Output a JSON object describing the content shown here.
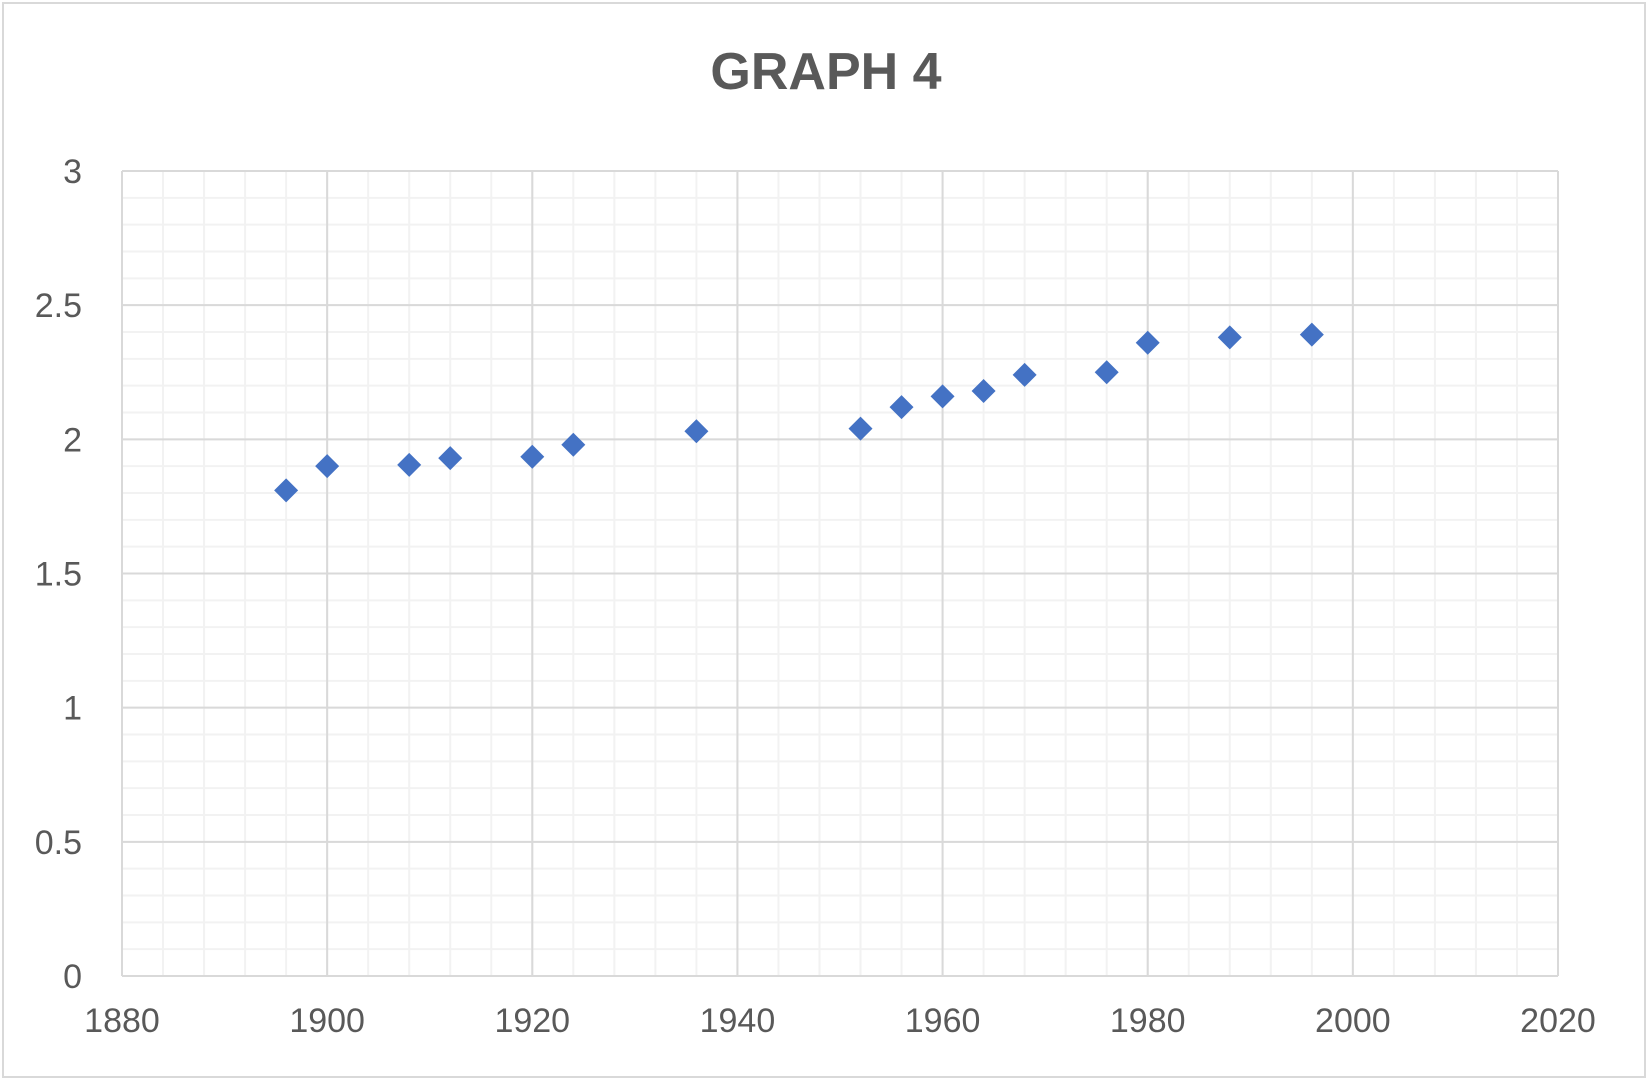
{
  "chart_data": {
    "type": "scatter",
    "title": "GRAPH 4",
    "xlabel": "",
    "ylabel": "",
    "xlim": [
      1880,
      2020
    ],
    "ylim": [
      0,
      3
    ],
    "x_major_step": 20,
    "y_major_step": 0.5,
    "x_minor_step": 4,
    "y_minor_step": 0.1,
    "x_ticks": [
      "1880",
      "1900",
      "1920",
      "1940",
      "1960",
      "1980",
      "2000",
      "2020"
    ],
    "y_ticks": [
      "0",
      "0.5",
      "1",
      "1.5",
      "2",
      "2.5",
      "3"
    ],
    "grid": true,
    "legend": "none",
    "marker": "diamond",
    "marker_color": "#4472c4",
    "major_grid_color": "#d9d9d9",
    "minor_grid_color": "#f2f2f2",
    "series": [
      {
        "x": [
          1896,
          1900,
          1908,
          1912,
          1920,
          1924,
          1936,
          1952,
          1956,
          1960,
          1964,
          1968,
          1976,
          1980,
          1988,
          1996
        ],
        "y": [
          1.81,
          1.9,
          1.905,
          1.93,
          1.935,
          1.98,
          2.03,
          2.04,
          2.12,
          2.16,
          2.18,
          2.24,
          2.25,
          2.36,
          2.38,
          2.39
        ]
      }
    ]
  }
}
